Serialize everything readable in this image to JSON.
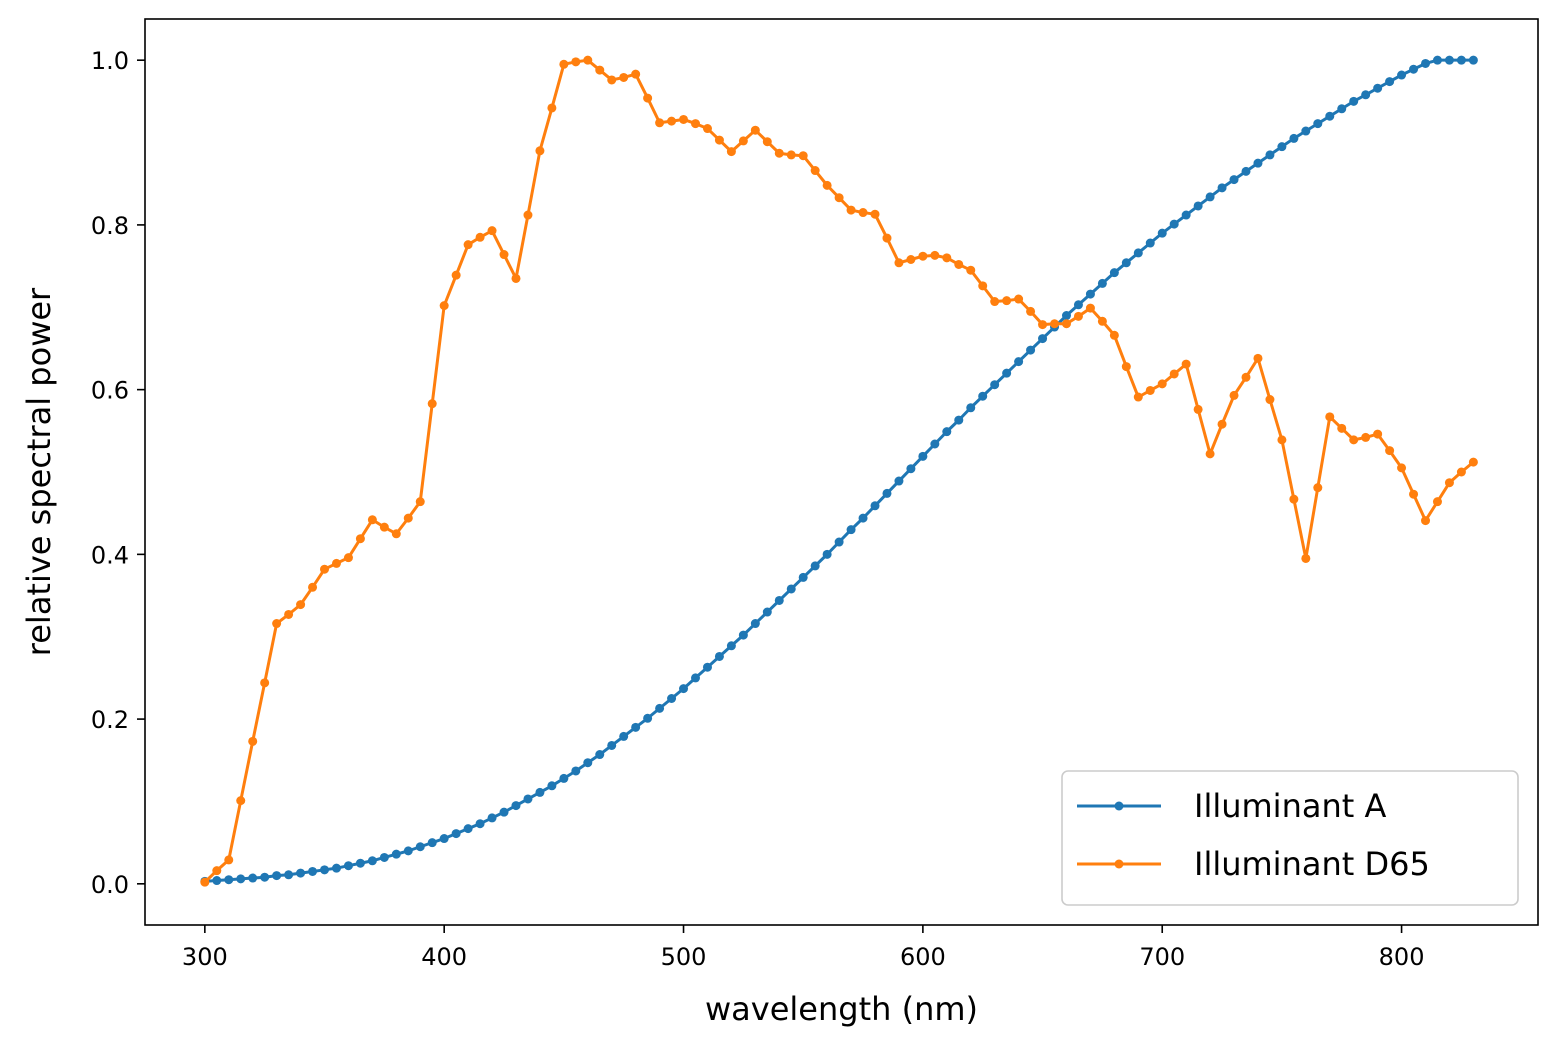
{
  "chart_data": {
    "type": "line",
    "title": "",
    "xlabel": "wavelength (nm)",
    "ylabel": "relative spectral power",
    "xlim": [
      275,
      857
    ],
    "ylim": [
      -0.05,
      1.05
    ],
    "xticks": [
      300,
      400,
      500,
      600,
      700,
      800
    ],
    "xtick_labels": [
      "300",
      "400",
      "500",
      "600",
      "700",
      "800"
    ],
    "yticks": [
      0.0,
      0.2,
      0.4,
      0.6,
      0.8,
      1.0
    ],
    "ytick_labels": [
      "0.0",
      "0.2",
      "0.4",
      "0.6",
      "0.8",
      "1.0"
    ],
    "grid": false,
    "legend_position": "lower-right",
    "x": [
      300,
      305,
      310,
      315,
      320,
      325,
      330,
      335,
      340,
      345,
      350,
      355,
      360,
      365,
      370,
      375,
      380,
      385,
      390,
      395,
      400,
      405,
      410,
      415,
      420,
      425,
      430,
      435,
      440,
      445,
      450,
      455,
      460,
      465,
      470,
      475,
      480,
      485,
      490,
      495,
      500,
      505,
      510,
      515,
      520,
      525,
      530,
      535,
      540,
      545,
      550,
      555,
      560,
      565,
      570,
      575,
      580,
      585,
      590,
      595,
      600,
      605,
      610,
      615,
      620,
      625,
      630,
      635,
      640,
      645,
      650,
      655,
      660,
      665,
      670,
      675,
      680,
      685,
      690,
      695,
      700,
      705,
      710,
      715,
      720,
      725,
      730,
      735,
      740,
      745,
      750,
      755,
      760,
      765,
      770,
      775,
      780,
      785,
      790,
      795,
      800,
      805,
      810,
      815,
      820,
      825,
      830
    ],
    "series": [
      {
        "name": "Illuminant A",
        "color": "#1f77b4",
        "values": [
          0.003,
          0.004,
          0.005,
          0.006,
          0.007,
          0.008,
          0.01,
          0.011,
          0.013,
          0.015,
          0.017,
          0.019,
          0.022,
          0.025,
          0.028,
          0.032,
          0.036,
          0.04,
          0.045,
          0.05,
          0.055,
          0.061,
          0.067,
          0.073,
          0.08,
          0.087,
          0.095,
          0.103,
          0.111,
          0.119,
          0.128,
          0.137,
          0.147,
          0.157,
          0.168,
          0.179,
          0.19,
          0.201,
          0.213,
          0.225,
          0.237,
          0.25,
          0.263,
          0.276,
          0.289,
          0.302,
          0.316,
          0.33,
          0.344,
          0.358,
          0.372,
          0.386,
          0.4,
          0.415,
          0.43,
          0.444,
          0.459,
          0.474,
          0.489,
          0.504,
          0.519,
          0.534,
          0.549,
          0.563,
          0.578,
          0.592,
          0.606,
          0.62,
          0.634,
          0.648,
          0.662,
          0.676,
          0.69,
          0.703,
          0.716,
          0.729,
          0.742,
          0.754,
          0.766,
          0.778,
          0.79,
          0.801,
          0.812,
          0.823,
          0.834,
          0.845,
          0.855,
          0.865,
          0.875,
          0.885,
          0.895,
          0.905,
          0.914,
          0.923,
          0.932,
          0.941,
          0.95,
          0.958,
          0.966,
          0.974,
          0.982,
          0.989,
          0.996,
          1.0,
          1.0,
          1.0,
          1.0
        ]
      },
      {
        "name": "Illuminant D65",
        "color": "#ff7f0e",
        "values": [
          0.002,
          0.016,
          0.029,
          0.101,
          0.173,
          0.244,
          0.316,
          0.327,
          0.339,
          0.36,
          0.382,
          0.389,
          0.396,
          0.419,
          0.442,
          0.433,
          0.425,
          0.444,
          0.464,
          0.583,
          0.702,
          0.739,
          0.776,
          0.785,
          0.793,
          0.764,
          0.735,
          0.812,
          0.89,
          0.942,
          0.995,
          0.998,
          1.0,
          0.988,
          0.976,
          0.979,
          0.983,
          0.954,
          0.924,
          0.926,
          0.928,
          0.923,
          0.917,
          0.903,
          0.889,
          0.902,
          0.915,
          0.901,
          0.887,
          0.885,
          0.884,
          0.866,
          0.848,
          0.833,
          0.818,
          0.815,
          0.813,
          0.784,
          0.754,
          0.758,
          0.762,
          0.763,
          0.76,
          0.752,
          0.745,
          0.726,
          0.707,
          0.708,
          0.71,
          0.695,
          0.679,
          0.68,
          0.68,
          0.689,
          0.699,
          0.683,
          0.666,
          0.628,
          0.591,
          0.599,
          0.607,
          0.619,
          0.631,
          0.576,
          0.522,
          0.558,
          0.593,
          0.615,
          0.638,
          0.588,
          0.539,
          0.467,
          0.395,
          0.481,
          0.567,
          0.553,
          0.539,
          0.542,
          0.546,
          0.526,
          0.505,
          0.473,
          0.441,
          0.464,
          0.487,
          0.5,
          0.512
        ]
      }
    ]
  }
}
